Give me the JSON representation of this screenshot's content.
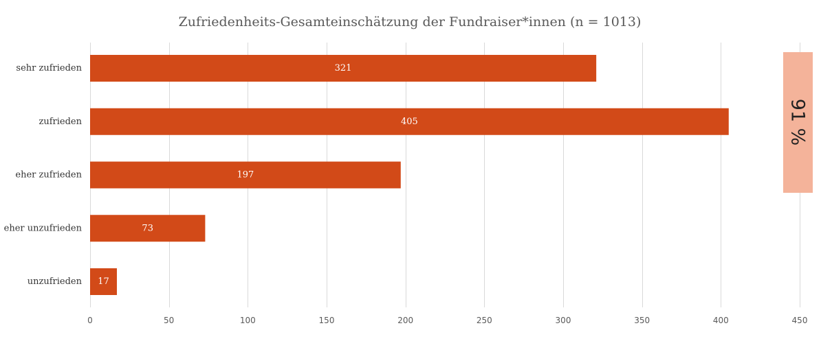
{
  "chart_data": {
    "type": "bar",
    "orientation": "horizontal",
    "title": "Zufriedenheits-Gesamteinschätzung der Fundraiser*innen (n = 1013)",
    "categories": [
      "sehr zufrieden",
      "zufrieden",
      "eher zufrieden",
      "eher unzufrieden",
      "unzufrieden"
    ],
    "values": [
      321,
      405,
      197,
      73,
      17
    ],
    "xlim": [
      0,
      450
    ],
    "xticks": [
      0,
      50,
      100,
      150,
      200,
      250,
      300,
      350,
      400,
      450
    ],
    "grid": true,
    "data_labels": true,
    "bar_color": "#D24A18",
    "annotation": {
      "text": "91 %",
      "color": "#F4B39A"
    }
  }
}
